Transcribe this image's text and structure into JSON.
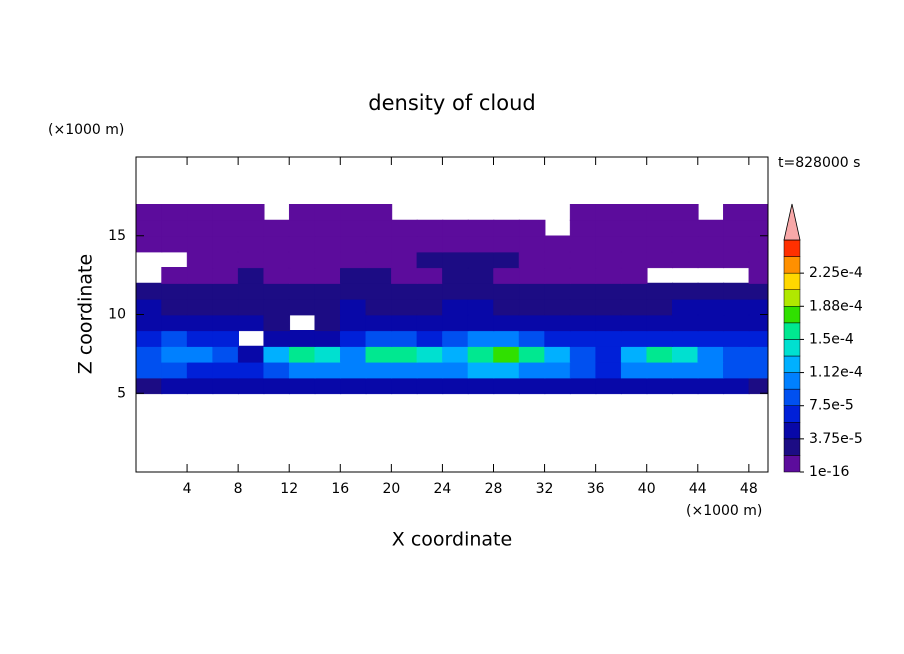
{
  "chart_data": {
    "type": "contour",
    "title": "density of cloud",
    "x_label": "X coordinate",
    "y_label": "Z coordinate",
    "x_unit": "(×1000 m)",
    "y_unit": "(×1000 m)",
    "annotation": "t=828000 s",
    "xlim": [
      0,
      49.5
    ],
    "ylim": [
      0,
      20
    ],
    "xticks": [
      4,
      8,
      12,
      16,
      20,
      24,
      28,
      32,
      36,
      40,
      44,
      48
    ],
    "yticks": [
      5,
      10,
      15
    ],
    "x": [
      1,
      3,
      5,
      7,
      9,
      11,
      13,
      15,
      17,
      19,
      21,
      23,
      25,
      27,
      29,
      31,
      33,
      35,
      37,
      39,
      41,
      43,
      45,
      47,
      49
    ],
    "y": [
      5.5,
      6.5,
      7.5,
      8.5,
      9.5,
      10.5,
      11.5,
      12.5,
      13.5,
      14.5,
      15.5,
      16.5
    ],
    "values": [
      [
        3e-05,
        4e-05,
        4e-05,
        4e-05,
        4e-05,
        4e-05,
        4e-05,
        4e-05,
        4e-05,
        4e-05,
        4e-05,
        4e-05,
        4e-05,
        4e-05,
        4e-05,
        4e-05,
        4e-05,
        4e-05,
        4e-05,
        4e-05,
        4e-05,
        4e-05,
        4e-05,
        4e-05,
        3e-05
      ],
      [
        8e-05,
        9e-05,
        7e-05,
        6e-05,
        6e-05,
        9e-05,
        0.0001,
        0.0001,
        0.0001,
        0.00011,
        0.00011,
        0.0001,
        0.00011,
        0.00012,
        0.00012,
        0.00011,
        0.0001,
        8e-05,
        6e-05,
        0.0001,
        0.00011,
        0.00011,
        0.0001,
        9e-05,
        8e-05
      ],
      [
        9e-05,
        0.0001,
        0.0001,
        8e-05,
        5e-05,
        0.00013,
        0.00015,
        0.00014,
        0.00011,
        0.00015,
        0.00015,
        0.00014,
        0.00013,
        0.00016,
        0.00017,
        0.00016,
        0.00013,
        9e-05,
        6e-05,
        0.00012,
        0.00015,
        0.00014,
        0.00011,
        9e-05,
        8e-05
      ],
      [
        7e-05,
        8e-05,
        7e-05,
        6e-05,
        null,
        5e-05,
        5e-05,
        5e-05,
        6e-05,
        8e-05,
        9e-05,
        7e-05,
        8e-05,
        0.0001,
        0.00011,
        9e-05,
        7e-05,
        6e-05,
        6e-05,
        6e-05,
        7e-05,
        6e-05,
        6e-05,
        7e-05,
        6e-05
      ],
      [
        5e-05,
        5e-05,
        5e-05,
        4e-05,
        4e-05,
        3e-05,
        null,
        3e-05,
        4e-05,
        4e-05,
        4e-05,
        4e-05,
        5e-05,
        5e-05,
        5e-05,
        5e-05,
        4e-05,
        4e-05,
        4e-05,
        4e-05,
        4e-05,
        4e-05,
        5e-05,
        5e-05,
        5e-05
      ],
      [
        4e-05,
        3e-05,
        3e-05,
        3e-05,
        3e-05,
        3e-05,
        3e-05,
        3e-05,
        4e-05,
        3e-05,
        3e-05,
        3e-05,
        4e-05,
        4e-05,
        3e-05,
        3e-05,
        3e-05,
        3e-05,
        3e-05,
        3e-05,
        3e-05,
        4e-05,
        4e-05,
        4e-05,
        4e-05
      ],
      [
        2e-05,
        2e-05,
        3e-05,
        2e-05,
        2e-05,
        2e-05,
        2e-05,
        2e-05,
        2e-05,
        2e-05,
        3e-05,
        2e-05,
        2e-05,
        2e-05,
        2e-05,
        2e-05,
        2e-05,
        2e-05,
        2e-05,
        2e-05,
        2e-05,
        3e-05,
        3e-05,
        3e-05,
        3e-05
      ],
      [
        null,
        1e-05,
        1e-05,
        1e-05,
        2e-05,
        1e-05,
        1e-05,
        1e-05,
        2e-05,
        2e-05,
        1e-05,
        1e-05,
        2e-05,
        2e-05,
        1e-05,
        1e-05,
        1e-05,
        1e-05,
        1e-05,
        1e-05,
        null,
        null,
        null,
        null,
        1e-05
      ],
      [
        null,
        null,
        1e-05,
        1e-05,
        1e-05,
        1e-05,
        1e-05,
        1e-05,
        1e-05,
        1e-05,
        1e-05,
        2e-05,
        2e-05,
        2e-05,
        2e-05,
        1e-05,
        1e-05,
        1e-05,
        1e-05,
        1e-05,
        1e-05,
        1e-05,
        1e-05,
        1e-05,
        1e-05
      ],
      [
        1e-05,
        1e-05,
        1e-05,
        1e-05,
        1e-05,
        1e-05,
        1e-05,
        1e-05,
        1e-05,
        1e-05,
        1e-05,
        1e-05,
        1e-05,
        1e-05,
        1e-05,
        1e-05,
        1e-05,
        1e-05,
        1e-05,
        1e-05,
        1e-05,
        1e-05,
        1e-05,
        1e-05,
        1e-05
      ],
      [
        1e-05,
        1e-05,
        1e-05,
        1e-05,
        1e-05,
        1e-05,
        1e-05,
        1e-05,
        1e-05,
        1e-05,
        1e-05,
        1e-05,
        1e-05,
        1e-05,
        1e-05,
        1e-05,
        null,
        1e-05,
        1e-05,
        1e-05,
        1e-05,
        1e-05,
        1e-05,
        1e-05,
        1e-05
      ],
      [
        1e-05,
        1e-05,
        1e-05,
        1e-05,
        1e-05,
        null,
        1e-05,
        1e-05,
        1e-05,
        1e-05,
        null,
        null,
        null,
        null,
        null,
        null,
        null,
        1e-05,
        1e-05,
        1e-05,
        1e-05,
        1e-05,
        null,
        1e-05,
        1e-05
      ]
    ],
    "levels": [
      1e-16,
      1.875e-05,
      3.75e-05,
      5.625e-05,
      7.5e-05,
      9.375e-05,
      0.0001125,
      0.00013125,
      0.00015,
      0.00016875,
      0.0001875,
      0.00020625,
      0.000225,
      0.00024375,
      0.0002625
    ],
    "colors": [
      "#5c0c9c",
      "#1c0c84",
      "#0808a8",
      "#0020d8",
      "#0050f0",
      "#0080ff",
      "#00b0ff",
      "#00e0d0",
      "#00e890",
      "#30e000",
      "#b0e800",
      "#ffd800",
      "#ff9000",
      "#ff3000"
    ],
    "extend_color": "#f8a8a8",
    "colorbar_ticks": [
      1e-16,
      {
        "value": 3.75e-05,
        "label": "3.75e-5"
      },
      {
        "value": 7.5e-05,
        "label": "7.5e-5"
      },
      {
        "value": 0.0001125,
        "label": "1.12e-4"
      },
      {
        "value": 0.00015,
        "label": "1.5e-4"
      },
      {
        "value": 0.0001875,
        "label": "1.88e-4"
      },
      {
        "value": 0.000225,
        "label": "2.25e-4"
      }
    ]
  }
}
